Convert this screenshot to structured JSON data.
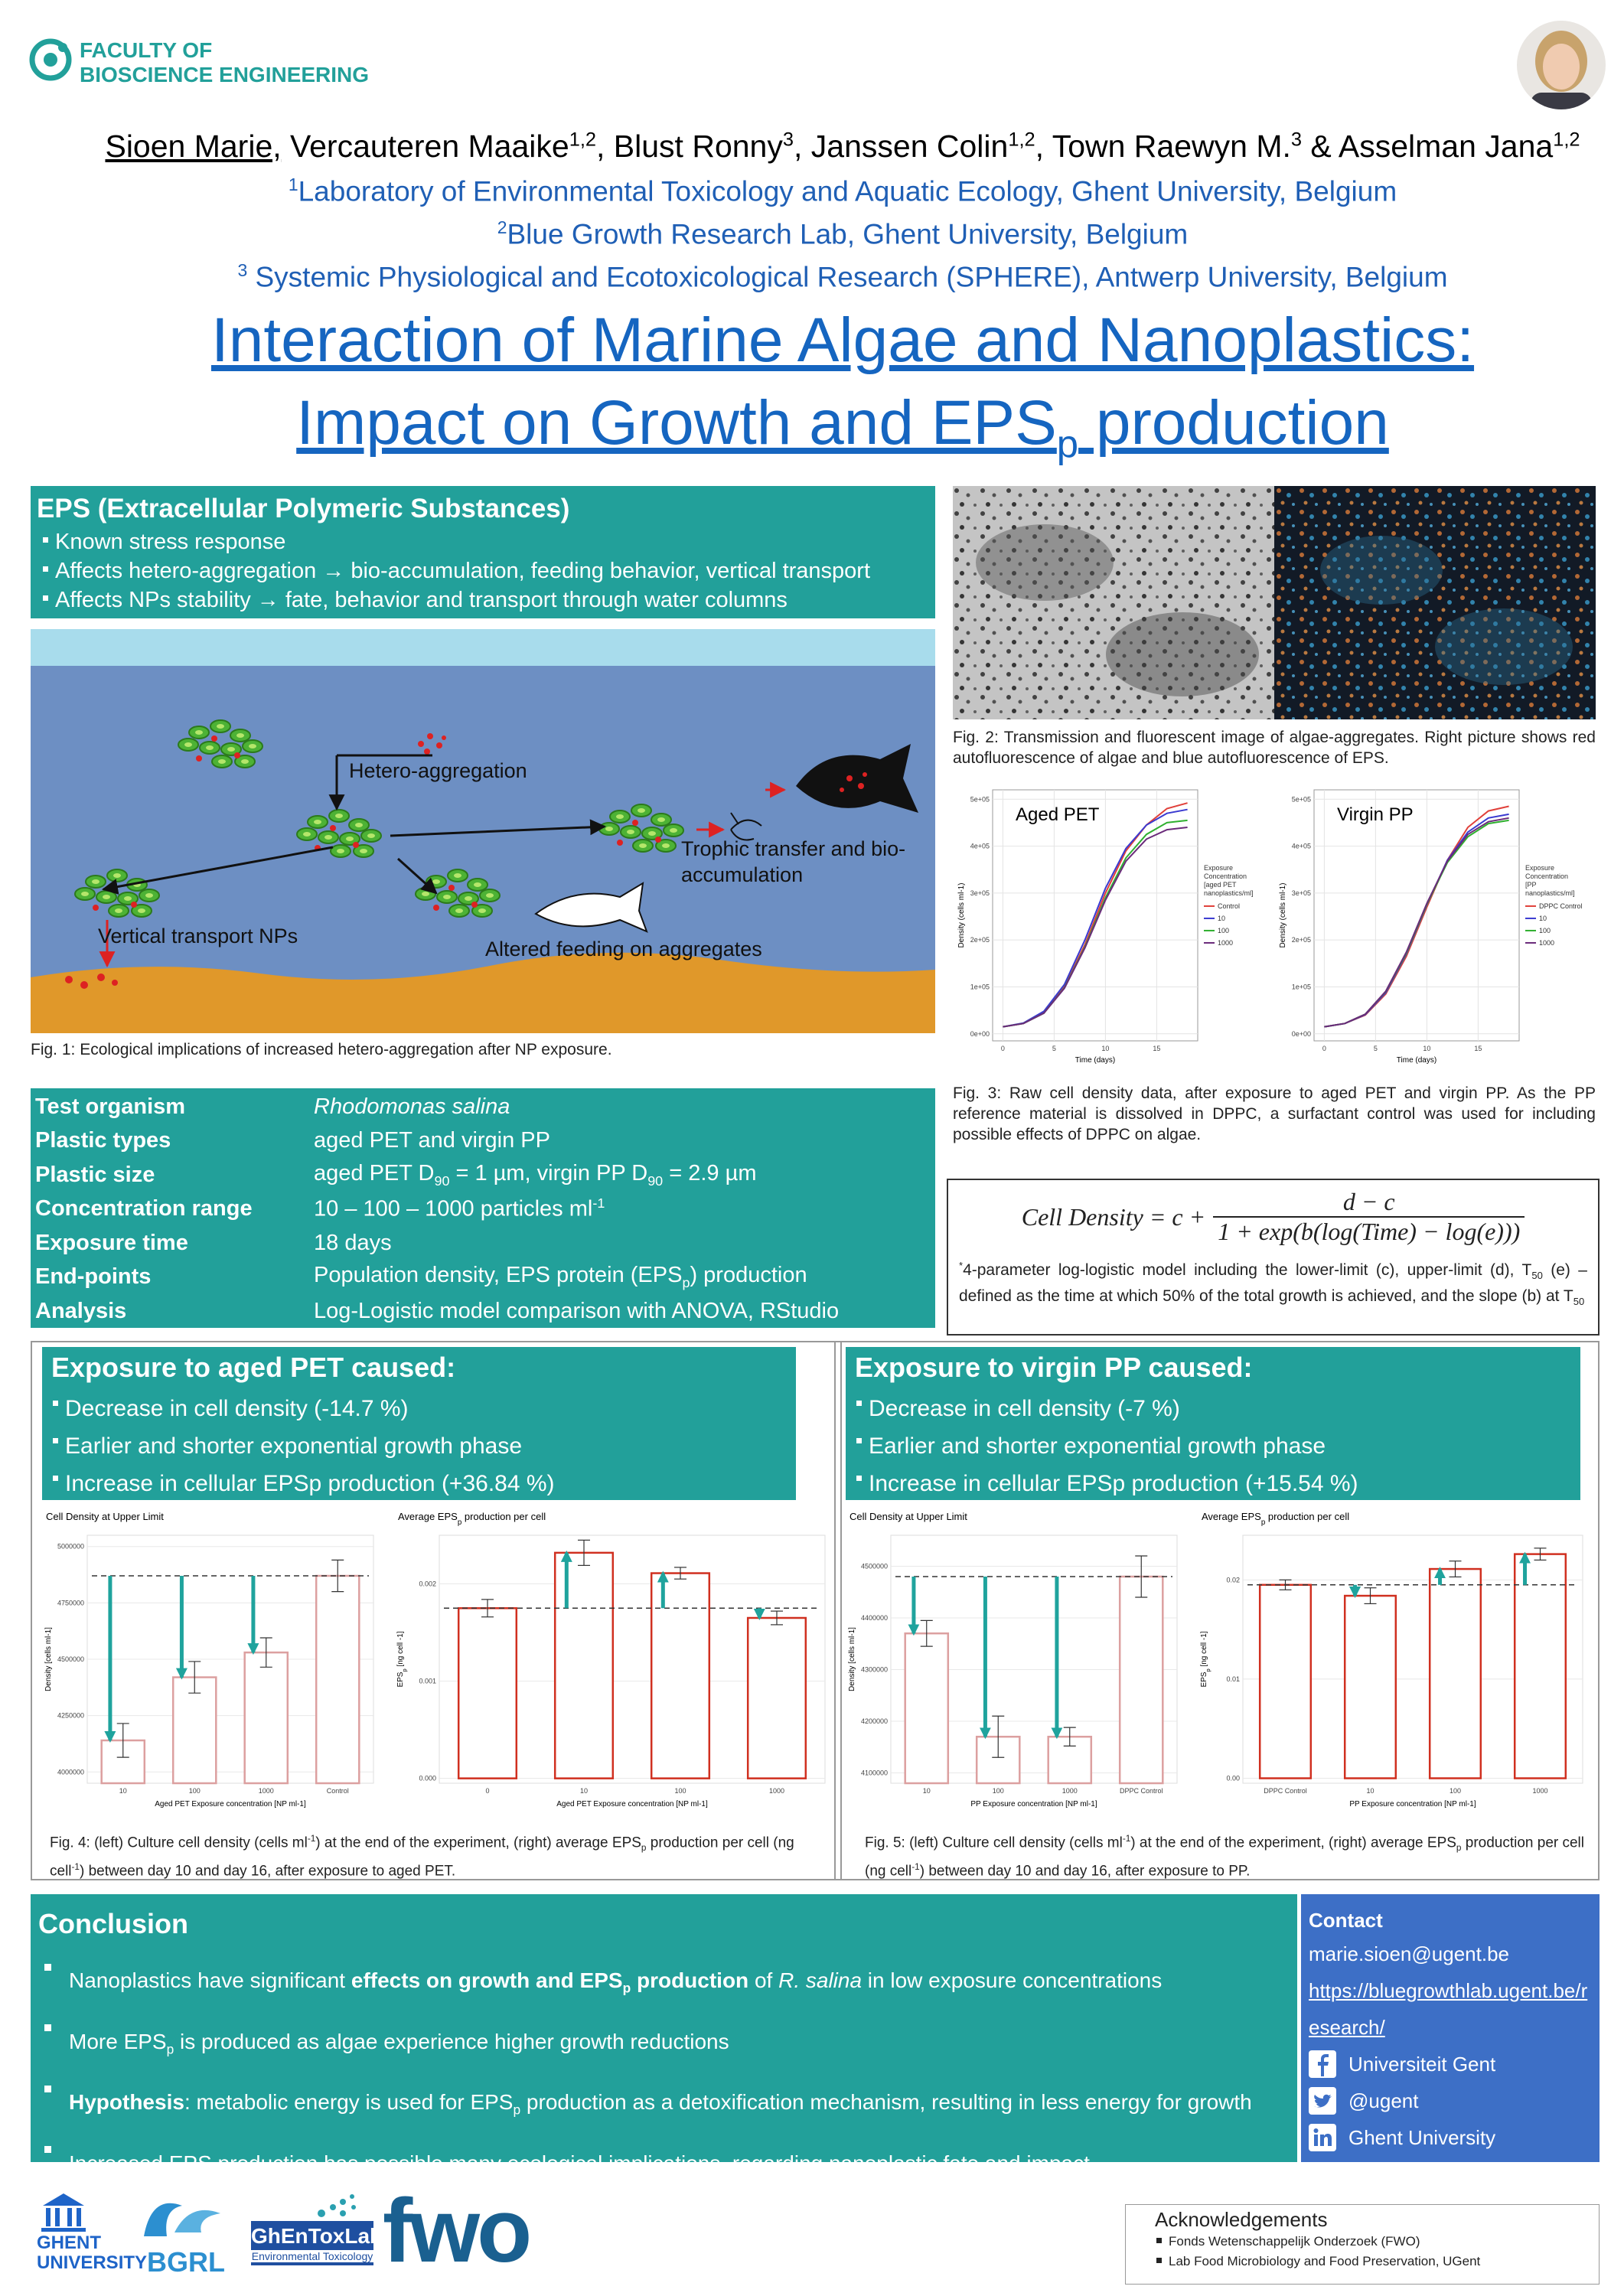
{
  "header": {
    "logo": [
      "FACULTY OF",
      "BIOSCIENCE ENGINEERING"
    ],
    "authors": [
      {
        "text": "Sioen Marie,",
        "style": "u"
      },
      {
        "text": " Vercauteren Maaike"
      },
      {
        "text": "1,2",
        "style": "sup"
      },
      {
        "text": ", Blust Ronny"
      },
      {
        "text": "3",
        "style": "sup"
      },
      {
        "text": ", Janssen Colin"
      },
      {
        "text": "1,2",
        "style": "sup"
      },
      {
        "text": ", Town Raewyn M."
      },
      {
        "text": "3",
        "style": "sup"
      },
      {
        "text": " & Asselman Jana"
      },
      {
        "text": "1,2",
        "style": "sup"
      }
    ],
    "affiliations": [
      [
        {
          "text": "1",
          "style": "sup"
        },
        {
          "text": "Laboratory of Environmental Toxicology and Aquatic Ecology, Ghent University, Belgium"
        }
      ],
      [
        {
          "text": "2",
          "style": "sup"
        },
        {
          "text": "Blue Growth Research Lab, Ghent University, Belgium"
        }
      ],
      [
        {
          "text": "3",
          "style": "sup"
        },
        {
          "text": " Systemic Physiological and Ecotoxicological Research (SPHERE), Antwerp University,  Belgium"
        }
      ]
    ],
    "title": [
      [
        {
          "text": "Interaction of Marine Algae and Nanoplastics:"
        }
      ],
      [
        {
          "text": "Impact on Growth and EPS"
        },
        {
          "text": "p",
          "style": "sub"
        },
        {
          "text": " production"
        }
      ]
    ]
  },
  "eps": {
    "heading": "EPS (Extracellular Polymeric Substances)",
    "bullets": [
      "Known stress response",
      "Affects hetero-aggregation → bio-accumulation, feeding behavior, vertical transport",
      "Affects NPs stability → fate, behavior and transport through water columns"
    ]
  },
  "fig1": {
    "labels": {
      "hetero": "Hetero-aggregation",
      "trophic": "Trophic transfer and bio-accumulation",
      "vertical": "Vertical transport NPs",
      "feeding": "Altered feeding on aggregates"
    },
    "caption": "Fig. 1: Ecological implications of increased hetero-aggregation after NP exposure."
  },
  "study_design": {
    "rows": [
      [
        "Test organism",
        [
          {
            "text": "Rhodomonas salina",
            "style": "i"
          }
        ]
      ],
      [
        "Plastic types",
        "aged PET and virgin PP"
      ],
      [
        "Plastic size",
        [
          {
            "text": "aged PET D"
          },
          {
            "text": "90",
            "style": "sub"
          },
          {
            "text": " = 1 µm, virgin PP D"
          },
          {
            "text": "90",
            "style": "sub"
          },
          {
            "text": " = 2.9 µm"
          }
        ]
      ],
      [
        "Concentration range",
        [
          {
            "text": "10 – 100 – 1000 particles ml"
          },
          {
            "text": "-1",
            "style": "sup"
          }
        ]
      ],
      [
        "Exposure time",
        "18 days"
      ],
      [
        "End-points",
        [
          {
            "text": "Population density, EPS protein (EPS"
          },
          {
            "text": "p",
            "style": "sub"
          },
          {
            "text": ")  production"
          }
        ]
      ],
      [
        "Analysis",
        "Log-Logistic model comparison with ANOVA, RStudio"
      ]
    ]
  },
  "fig2": {
    "caption": "Fig. 2: Transmission and fluorescent image of algae-aggregates. Right picture shows red autofluorescence of algae and blue autofluorescence of EPS."
  },
  "fig3": {
    "caption": "Fig. 3: Raw cell density data, after exposure to aged PET and virgin PP. As the PP reference material is dissolved in DPPC, a surfactant control was used for including possible effects of DPPC on algae."
  },
  "model": {
    "formula": {
      "lhs": "Cell Density = c +",
      "numerator": "d − c",
      "denominator": "1 + exp(b(log(Time) − log(e)))"
    },
    "note": [
      {
        "text": "*",
        "style": "sup"
      },
      {
        "text": "4-parameter log-logistic model including the lower-limit (c), upper-limit (d), T"
      },
      {
        "text": "50",
        "style": "sub"
      },
      {
        "text": " (e) –defined as the time at which 50% of the total growth is achieved,  and the slope (b) at T"
      },
      {
        "text": "50",
        "style": "sub"
      }
    ]
  },
  "results_pet": {
    "heading": "Exposure to aged PET caused:",
    "bullets": [
      "Decrease in cell density (-14.7 %)",
      "Earlier and shorter exponential growth phase",
      "Increase in cellular EPSp production (+36.84 %)"
    ]
  },
  "results_pp": {
    "heading": "Exposure to virgin PP caused:",
    "bullets": [
      "Decrease in cell density (-7 %)",
      "Earlier and shorter exponential growth phase",
      "Increase in cellular EPSp production (+15.54 %)"
    ]
  },
  "fig4": {
    "caption": [
      {
        "text": "Fig. 4: (left) Culture cell density (cells ml"
      },
      {
        "text": "-1",
        "style": "sup"
      },
      {
        "text": ") at the end of the experiment, (right) average EPS"
      },
      {
        "text": "p",
        "style": "sub"
      },
      {
        "text": " production per cell (ng cell"
      },
      {
        "text": "-1",
        "style": "sup"
      },
      {
        "text": ") between day 10 and day 16, after exposure to aged PET."
      }
    ]
  },
  "fig5": {
    "caption": [
      {
        "text": "Fig. 5: (left) Culture cell density (cells ml"
      },
      {
        "text": "-1",
        "style": "sup"
      },
      {
        "text": ") at the end of the experiment, (right) average EPS"
      },
      {
        "text": "p",
        "style": "sub"
      },
      {
        "text": " production per cell (ng cell"
      },
      {
        "text": "-1",
        "style": "sup"
      },
      {
        "text": ") between day 10 and day 16, after exposure to PP."
      }
    ]
  },
  "conclusion": {
    "heading": "Conclusion",
    "bullets": [
      [
        {
          "text": "Nanoplastics have significant "
        },
        {
          "text": "effects on growth and EPS",
          "style": "b"
        },
        {
          "text": "p",
          "style": "b sub"
        },
        {
          "text": " production",
          "style": "b"
        },
        {
          "text": " of "
        },
        {
          "text": "R. salina",
          "style": "i"
        },
        {
          "text": " in low exposure concentrations"
        }
      ],
      [
        {
          "text": "More EPS"
        },
        {
          "text": "p",
          "style": "sub"
        },
        {
          "text": " is produced as algae experience higher growth reductions"
        }
      ],
      [
        {
          "text": "Hypothesis",
          "style": "b"
        },
        {
          "text": ": metabolic energy is used for EPS"
        },
        {
          "text": "p",
          "style": "sub"
        },
        {
          "text": " production as a detoxification mechanism, resulting in less energy for growth"
        }
      ],
      "Increased EPS production has possible many ecological implications, regarding nanoplastic fate and impact"
    ]
  },
  "contact": {
    "heading": "Contact",
    "email": "marie.sioen@ugent.be",
    "url": "https://bluegrowthlab.ugent.be/research/",
    "social": [
      "Universiteit Gent",
      "@ugent",
      "Ghent University"
    ]
  },
  "logos": {
    "ugent": [
      "GHENT",
      "UNIVERSITY"
    ],
    "bgrl": "BGRL",
    "ghentoxlab": [
      "GhEnToxLab",
      "Environmental Toxicology"
    ],
    "fwo": "fwo"
  },
  "acknowledgements": {
    "heading": "Acknowledgements",
    "items": [
      "Fonds Wetenschappelijk Onderzoek (FWO)",
      "Lab Food Microbiology and Food Preservation, UGent"
    ]
  },
  "chart_data": [
    {
      "type": "line",
      "title": "Aged PET",
      "xlabel": "Time (days)",
      "ylabel": "Density (cells ml-1)",
      "x": [
        0,
        2,
        4,
        6,
        8,
        10,
        12,
        14,
        16,
        18
      ],
      "xlim": [
        -1,
        19
      ],
      "xticks": [
        0,
        5,
        10,
        15
      ],
      "ylim": [
        -15000,
        520000
      ],
      "yticks": [
        {
          "value": 0,
          "label": "0e+00"
        },
        {
          "value": 100000,
          "label": "1e+05"
        },
        {
          "value": 200000,
          "label": "2e+05"
        },
        {
          "value": 300000,
          "label": "3e+05"
        },
        {
          "value": 400000,
          "label": "4e+05"
        },
        {
          "value": 500000,
          "label": "5e+05"
        }
      ],
      "grid": true,
      "legend_title": [
        "Exposure",
        "Concentration",
        "[aged PET",
        "nanoplastics/ml]"
      ],
      "series": [
        {
          "name": "Control",
          "color": "#e0403a",
          "values": [
            15000,
            22000,
            45000,
            100000,
            190000,
            300000,
            390000,
            445000,
            480000,
            492000
          ]
        },
        {
          "name": "10",
          "color": "#3a3ad0",
          "values": [
            15000,
            23000,
            48000,
            105000,
            200000,
            310000,
            395000,
            445000,
            470000,
            478000
          ]
        },
        {
          "name": "100",
          "color": "#30b030",
          "values": [
            15000,
            22000,
            44000,
            98000,
            185000,
            290000,
            375000,
            425000,
            450000,
            455000
          ]
        },
        {
          "name": "1000",
          "color": "#6a2a7a",
          "values": [
            15000,
            22000,
            44000,
            97000,
            183000,
            285000,
            368000,
            415000,
            435000,
            440000
          ]
        }
      ]
    },
    {
      "type": "line",
      "title": "Virgin PP",
      "xlabel": "Time (days)",
      "ylabel": "Density (cells ml-1)",
      "x": [
        0,
        2,
        4,
        6,
        8,
        10,
        12,
        14,
        16,
        18
      ],
      "xlim": [
        -1,
        19
      ],
      "xticks": [
        0,
        5,
        10,
        15
      ],
      "ylim": [
        -15000,
        520000
      ],
      "yticks": [
        {
          "value": 0,
          "label": "0e+00"
        },
        {
          "value": 100000,
          "label": "1e+05"
        },
        {
          "value": 200000,
          "label": "2e+05"
        },
        {
          "value": 300000,
          "label": "3e+05"
        },
        {
          "value": 400000,
          "label": "4e+05"
        },
        {
          "value": 500000,
          "label": "5e+05"
        }
      ],
      "grid": true,
      "legend_title": [
        "Exposure",
        "Concentration",
        "[PP",
        "nanoplastics/ml]"
      ],
      "series": [
        {
          "name": "DPPC Control",
          "color": "#e0403a",
          "values": [
            15000,
            22000,
            40000,
            85000,
            165000,
            270000,
            370000,
            440000,
            475000,
            485000
          ]
        },
        {
          "name": "10",
          "color": "#3a3ad0",
          "values": [
            15000,
            22000,
            41000,
            88000,
            170000,
            275000,
            370000,
            430000,
            460000,
            468000
          ]
        },
        {
          "name": "100",
          "color": "#30b030",
          "values": [
            15000,
            22000,
            42000,
            90000,
            172000,
            276000,
            365000,
            420000,
            448000,
            455000
          ]
        },
        {
          "name": "1000",
          "color": "#6a2a7a",
          "values": [
            15000,
            22000,
            42000,
            91000,
            174000,
            278000,
            368000,
            425000,
            452000,
            460000
          ]
        }
      ]
    },
    {
      "type": "bar",
      "title": "Cell Density at Upper Limit",
      "xlabel": "Aged PET Exposure concentration [NP ml-1]",
      "ylabel": "Density [cells ml-1]",
      "categories": [
        "10",
        "100",
        "1000",
        "Control"
      ],
      "values": [
        4140000,
        4420000,
        4530000,
        4870000
      ],
      "errors": [
        75000,
        70000,
        65000,
        70000
      ],
      "ylim": [
        3950000,
        5050000
      ],
      "yticks": [
        4000000,
        4250000,
        4500000,
        4750000,
        5000000
      ],
      "grid": true,
      "color": "#dca0a0"
    },
    {
      "type": "bar",
      "title": [
        {
          "text": "Average EPS"
        },
        {
          "text": "p",
          "style": "sub"
        },
        {
          "text": " production per cell"
        }
      ],
      "xlabel": "Aged PET Exposure concentration [NP ml-1]",
      "ylabel": [
        {
          "text": "EPS"
        },
        {
          "text": "p",
          "style": "sub"
        },
        {
          "text": " [ng cell -1]"
        }
      ],
      "categories": [
        "0",
        "10",
        "100",
        "1000"
      ],
      "values": [
        0.00175,
        0.00232,
        0.00211,
        0.00165
      ],
      "errors": [
        9e-05,
        0.00013,
        6e-05,
        7e-05
      ],
      "ylim": [
        -5e-05,
        0.0025
      ],
      "yticks": [
        {
          "value": 0,
          "label": "0.000"
        },
        {
          "value": 0.001,
          "label": "0.001"
        },
        {
          "value": 0.002,
          "label": "0.002"
        }
      ],
      "grid": true,
      "color": "#d03020"
    },
    {
      "type": "bar",
      "title": "Cell Density at Upper Limit",
      "xlabel": "PP Exposure concentration [NP ml-1]",
      "ylabel": "Density [cells ml-1]",
      "categories": [
        "10",
        "100",
        "1000",
        "DPPC Control"
      ],
      "values": [
        4370000,
        4170000,
        4170000,
        4480000
      ],
      "errors": [
        25000,
        40000,
        18000,
        40000
      ],
      "ylim": [
        4080000,
        4560000
      ],
      "yticks": [
        4100000,
        4200000,
        4300000,
        4400000,
        4500000
      ],
      "grid": true,
      "color": "#dca0a0"
    },
    {
      "type": "bar",
      "title": [
        {
          "text": "Average EPS"
        },
        {
          "text": "p",
          "style": "sub"
        },
        {
          "text": " production per cell"
        }
      ],
      "xlabel": "PP Exposure concentration [NP ml-1]",
      "ylabel": [
        {
          "text": "EPS"
        },
        {
          "text": "p",
          "style": "sub"
        },
        {
          "text": " [ng cell -1]"
        }
      ],
      "categories": [
        "DPPC Control",
        "10",
        "100",
        "1000"
      ],
      "values": [
        0.0195,
        0.0184,
        0.0211,
        0.0226
      ],
      "errors": [
        0.0005,
        0.0008,
        0.0008,
        0.0006
      ],
      "ylim": [
        -0.0005,
        0.0245
      ],
      "yticks": [
        {
          "value": 0,
          "label": "0.00"
        },
        {
          "value": 0.01,
          "label": "0.01"
        },
        {
          "value": 0.02,
          "label": "0.02"
        }
      ],
      "grid": true,
      "color": "#d03020"
    }
  ]
}
